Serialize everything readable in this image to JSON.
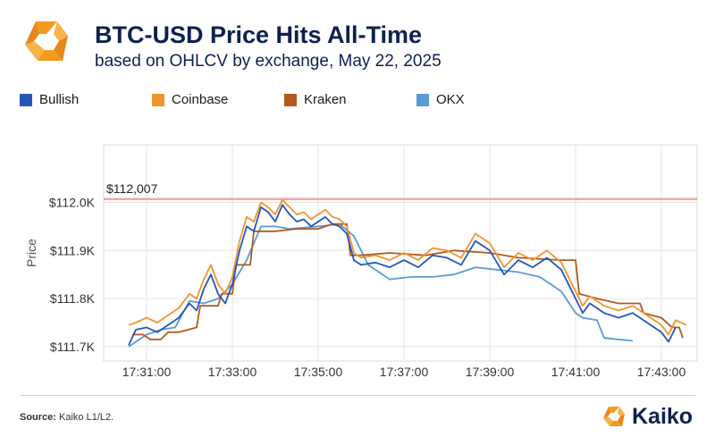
{
  "header": {
    "title": "BTC-USD Price Hits All-Time",
    "subtitle": "based on OHLCV by exchange, May 22, 2025"
  },
  "footer": {
    "source_label": "Source:",
    "source_text": "Kaiko L1/L2.",
    "brand_name": "Kaiko"
  },
  "icons": {
    "logo": "kaiko-logo-icon",
    "brand": "kaiko-logo-icon"
  },
  "colors": {
    "Bullish": "#2656b8",
    "Coinbase": "#f0952e",
    "Kraken": "#b25a1e",
    "OKX": "#5b9ad6",
    "ath_line": "#f4a7a0",
    "brand_orange": "#f39a1f"
  },
  "chart_data": {
    "type": "line",
    "title": "BTC-USD Price Hits All-Time",
    "subtitle": "based on OHLCV by exchange, May 22, 2025",
    "xlabel": "",
    "ylabel": "Price",
    "x_ticks": [
      "17:31:00",
      "17:33:00",
      "17:35:00",
      "17:37:00",
      "17:39:00",
      "17:41:00",
      "17:43:00"
    ],
    "y_ticks": [
      "$111.7K",
      "$111.8K",
      "$111.9K",
      "$112.0K"
    ],
    "y_tick_values": [
      111700,
      111800,
      111900,
      112000
    ],
    "ylim": [
      111670,
      112120
    ],
    "xlim": [
      "17:30:00",
      "17:43:50"
    ],
    "grid": true,
    "legend_position": "top-left",
    "annotations": [
      {
        "type": "hline",
        "y": 112007,
        "label": "$112,007"
      }
    ],
    "series": [
      {
        "name": "Bullish",
        "points": [
          [
            "17:30:35",
            111703
          ],
          [
            "17:30:45",
            111735
          ],
          [
            "17:31:00",
            111740
          ],
          [
            "17:31:15",
            111730
          ],
          [
            "17:31:30",
            111745
          ],
          [
            "17:31:45",
            111760
          ],
          [
            "17:32:00",
            111790
          ],
          [
            "17:32:10",
            111775
          ],
          [
            "17:32:20",
            111820
          ],
          [
            "17:32:30",
            111850
          ],
          [
            "17:32:40",
            111810
          ],
          [
            "17:32:50",
            111790
          ],
          [
            "17:33:00",
            111830
          ],
          [
            "17:33:10",
            111900
          ],
          [
            "17:33:20",
            111950
          ],
          [
            "17:33:30",
            111940
          ],
          [
            "17:33:40",
            111990
          ],
          [
            "17:33:50",
            111980
          ],
          [
            "17:34:00",
            111960
          ],
          [
            "17:34:10",
            111995
          ],
          [
            "17:34:20",
            111975
          ],
          [
            "17:34:30",
            111960
          ],
          [
            "17:34:40",
            111965
          ],
          [
            "17:34:50",
            111950
          ],
          [
            "17:35:00",
            111960
          ],
          [
            "17:35:10",
            111970
          ],
          [
            "17:35:20",
            111955
          ],
          [
            "17:35:30",
            111950
          ],
          [
            "17:35:40",
            111935
          ],
          [
            "17:35:50",
            111880
          ],
          [
            "17:36:00",
            111870
          ],
          [
            "17:36:20",
            111875
          ],
          [
            "17:36:40",
            111865
          ],
          [
            "17:37:00",
            111880
          ],
          [
            "17:37:20",
            111865
          ],
          [
            "17:37:40",
            111890
          ],
          [
            "17:38:00",
            111885
          ],
          [
            "17:38:20",
            111870
          ],
          [
            "17:38:40",
            111920
          ],
          [
            "17:39:00",
            111900
          ],
          [
            "17:39:20",
            111850
          ],
          [
            "17:39:40",
            111880
          ],
          [
            "17:40:00",
            111865
          ],
          [
            "17:40:20",
            111885
          ],
          [
            "17:40:40",
            111860
          ],
          [
            "17:41:00",
            111800
          ],
          [
            "17:41:10",
            111770
          ],
          [
            "17:41:20",
            111790
          ],
          [
            "17:41:40",
            111770
          ],
          [
            "17:42:00",
            111760
          ],
          [
            "17:42:20",
            111770
          ],
          [
            "17:42:40",
            111750
          ],
          [
            "17:43:00",
            111730
          ],
          [
            "17:43:10",
            111710
          ],
          [
            "17:43:20",
            111740
          ]
        ]
      },
      {
        "name": "Coinbase",
        "points": [
          [
            "17:30:35",
            111745
          ],
          [
            "17:30:45",
            111750
          ],
          [
            "17:31:00",
            111760
          ],
          [
            "17:31:15",
            111750
          ],
          [
            "17:31:30",
            111765
          ],
          [
            "17:31:45",
            111780
          ],
          [
            "17:32:00",
            111810
          ],
          [
            "17:32:10",
            111800
          ],
          [
            "17:32:20",
            111840
          ],
          [
            "17:32:30",
            111870
          ],
          [
            "17:32:40",
            111830
          ],
          [
            "17:32:50",
            111810
          ],
          [
            "17:33:00",
            111845
          ],
          [
            "17:33:10",
            111920
          ],
          [
            "17:33:20",
            111970
          ],
          [
            "17:33:30",
            111960
          ],
          [
            "17:33:40",
            112000
          ],
          [
            "17:33:50",
            111990
          ],
          [
            "17:34:00",
            111975
          ],
          [
            "17:34:10",
            112005
          ],
          [
            "17:34:20",
            111990
          ],
          [
            "17:34:30",
            111975
          ],
          [
            "17:34:40",
            111980
          ],
          [
            "17:34:50",
            111965
          ],
          [
            "17:35:00",
            111975
          ],
          [
            "17:35:10",
            111985
          ],
          [
            "17:35:20",
            111970
          ],
          [
            "17:35:30",
            111965
          ],
          [
            "17:35:40",
            111950
          ],
          [
            "17:35:50",
            111895
          ],
          [
            "17:36:00",
            111885
          ],
          [
            "17:36:20",
            111890
          ],
          [
            "17:36:40",
            111880
          ],
          [
            "17:37:00",
            111895
          ],
          [
            "17:37:20",
            111880
          ],
          [
            "17:37:40",
            111905
          ],
          [
            "17:38:00",
            111900
          ],
          [
            "17:38:20",
            111885
          ],
          [
            "17:38:40",
            111935
          ],
          [
            "17:39:00",
            111915
          ],
          [
            "17:39:20",
            111865
          ],
          [
            "17:39:40",
            111895
          ],
          [
            "17:40:00",
            111880
          ],
          [
            "17:40:20",
            111900
          ],
          [
            "17:40:40",
            111875
          ],
          [
            "17:41:00",
            111815
          ],
          [
            "17:41:10",
            111785
          ],
          [
            "17:41:20",
            111805
          ],
          [
            "17:41:40",
            111785
          ],
          [
            "17:42:00",
            111775
          ],
          [
            "17:42:20",
            111785
          ],
          [
            "17:42:40",
            111765
          ],
          [
            "17:43:00",
            111745
          ],
          [
            "17:43:10",
            111725
          ],
          [
            "17:43:20",
            111755
          ],
          [
            "17:43:35",
            111745
          ]
        ]
      },
      {
        "name": "Kraken",
        "points": [
          [
            "17:30:40",
            111725
          ],
          [
            "17:30:55",
            111725
          ],
          [
            "17:31:05",
            111715
          ],
          [
            "17:31:20",
            111715
          ],
          [
            "17:31:30",
            111730
          ],
          [
            "17:31:45",
            111730
          ],
          [
            "17:32:10",
            111740
          ],
          [
            "17:32:15",
            111785
          ],
          [
            "17:32:40",
            111785
          ],
          [
            "17:32:45",
            111810
          ],
          [
            "17:33:00",
            111810
          ],
          [
            "17:33:05",
            111870
          ],
          [
            "17:33:25",
            111870
          ],
          [
            "17:33:30",
            111940
          ],
          [
            "17:34:00",
            111940
          ],
          [
            "17:34:30",
            111945
          ],
          [
            "17:35:00",
            111945
          ],
          [
            "17:35:20",
            111955
          ],
          [
            "17:35:40",
            111955
          ],
          [
            "17:35:45",
            111890
          ],
          [
            "17:36:00",
            111890
          ],
          [
            "17:36:40",
            111895
          ],
          [
            "17:37:30",
            111890
          ],
          [
            "17:38:10",
            111900
          ],
          [
            "17:39:00",
            111895
          ],
          [
            "17:39:40",
            111885
          ],
          [
            "17:40:40",
            111880
          ],
          [
            "17:41:00",
            111880
          ],
          [
            "17:41:05",
            111810
          ],
          [
            "17:41:30",
            111800
          ],
          [
            "17:42:00",
            111790
          ],
          [
            "17:42:30",
            111790
          ],
          [
            "17:42:35",
            111770
          ],
          [
            "17:43:00",
            111760
          ],
          [
            "17:43:15",
            111740
          ],
          [
            "17:43:25",
            111740
          ],
          [
            "17:43:30",
            111718
          ]
        ]
      },
      {
        "name": "OKX",
        "points": [
          [
            "17:30:35",
            111700
          ],
          [
            "17:31:00",
            111725
          ],
          [
            "17:31:20",
            111735
          ],
          [
            "17:31:40",
            111740
          ],
          [
            "17:32:00",
            111795
          ],
          [
            "17:32:20",
            111790
          ],
          [
            "17:32:40",
            111800
          ],
          [
            "17:33:00",
            111830
          ],
          [
            "17:33:20",
            111880
          ],
          [
            "17:33:40",
            111950
          ],
          [
            "17:34:00",
            111950
          ],
          [
            "17:34:20",
            111945
          ],
          [
            "17:35:00",
            111950
          ],
          [
            "17:35:30",
            111955
          ],
          [
            "17:35:50",
            111930
          ],
          [
            "17:36:10",
            111870
          ],
          [
            "17:36:40",
            111840
          ],
          [
            "17:37:10",
            111845
          ],
          [
            "17:37:40",
            111845
          ],
          [
            "17:38:10",
            111850
          ],
          [
            "17:38:40",
            111865
          ],
          [
            "17:39:10",
            111860
          ],
          [
            "17:39:40",
            111855
          ],
          [
            "17:40:10",
            111845
          ],
          [
            "17:40:40",
            111815
          ],
          [
            "17:41:00",
            111770
          ],
          [
            "17:41:10",
            111760
          ],
          [
            "17:41:30",
            111755
          ],
          [
            "17:41:40",
            111718
          ],
          [
            "17:42:00",
            111715
          ],
          [
            "17:42:20",
            111712
          ]
        ]
      }
    ]
  }
}
